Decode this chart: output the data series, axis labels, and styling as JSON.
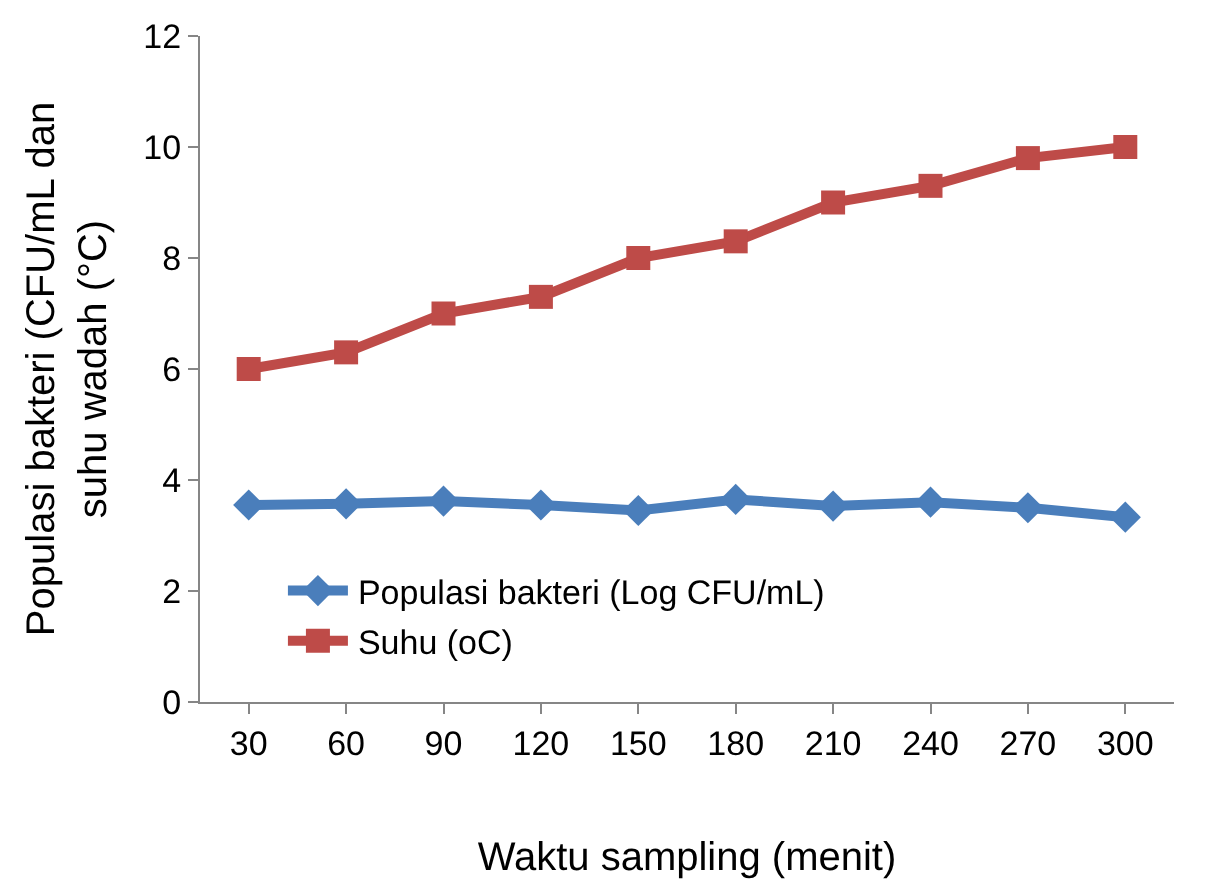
{
  "chart_data": {
    "type": "line",
    "xlabel": "Waktu sampling (menit)",
    "ylabel": "Populasi bakteri (CFU/mL dan\nsuhu wadah (°C)",
    "categories": [
      "30",
      "60",
      "90",
      "120",
      "150",
      "180",
      "210",
      "240",
      "270",
      "300"
    ],
    "series": [
      {
        "name": "Populasi bakteri (Log CFU/mL)",
        "color": "#4a7ebb",
        "marker": "diamond",
        "values": [
          3.55,
          3.57,
          3.62,
          3.55,
          3.45,
          3.65,
          3.53,
          3.6,
          3.5,
          3.33
        ]
      },
      {
        "name": "Suhu (oC)",
        "color": "#be4b48",
        "marker": "square",
        "values": [
          6.0,
          6.3,
          7.0,
          7.3,
          8.0,
          8.3,
          9.0,
          9.3,
          9.8,
          10.0
        ]
      }
    ],
    "ylim": [
      0,
      12
    ],
    "yticks": [
      0,
      2,
      4,
      6,
      8,
      10,
      12
    ],
    "grid": false,
    "legend": "bottom left",
    "line_style": "solid"
  }
}
